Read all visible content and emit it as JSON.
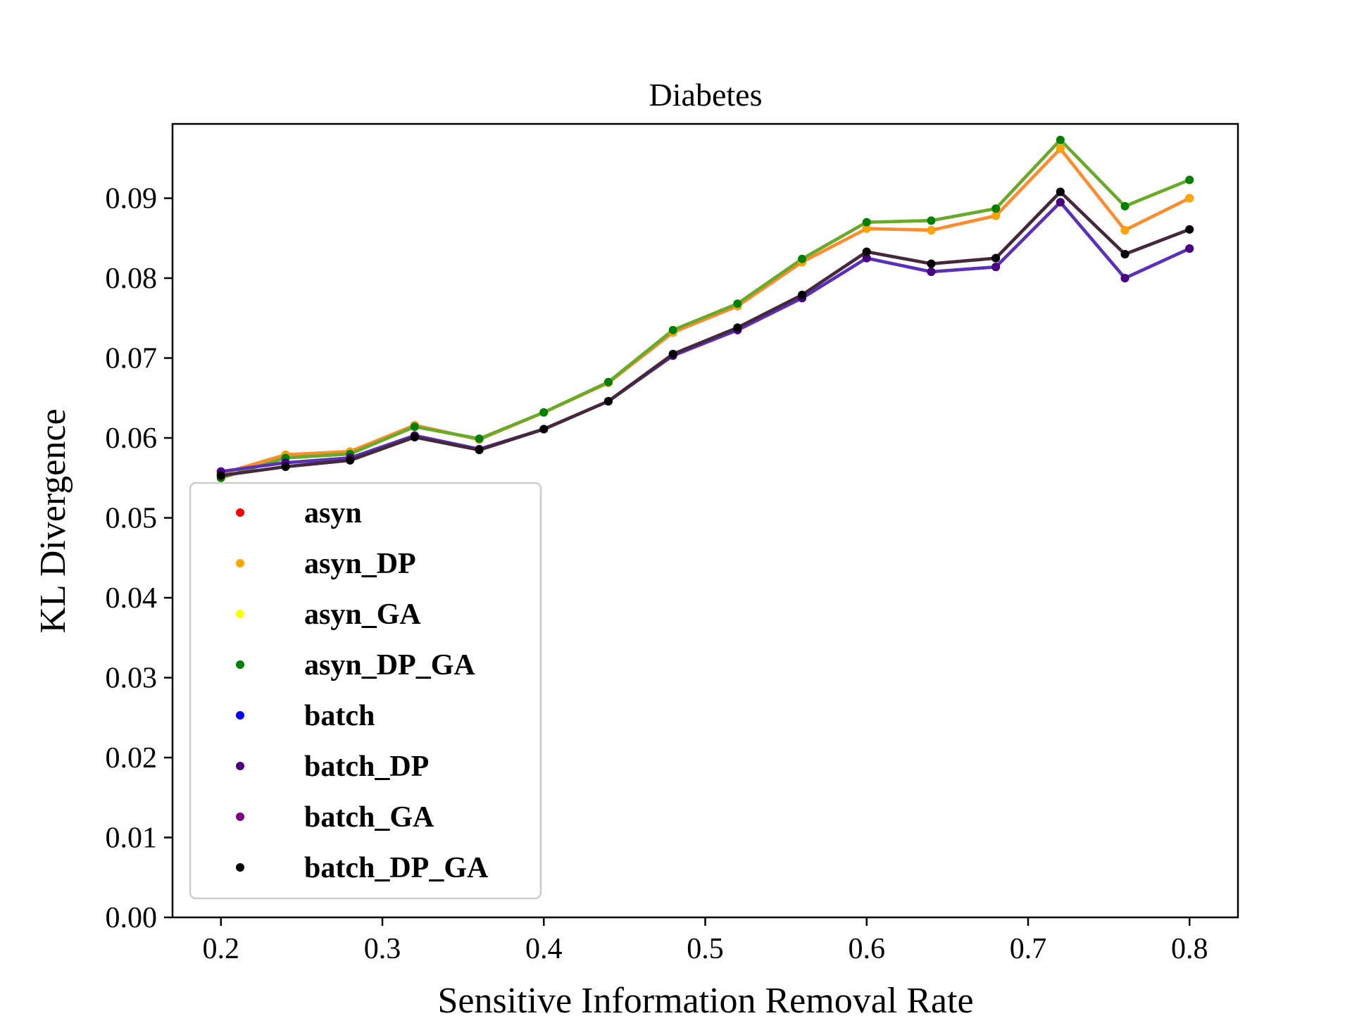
{
  "chart_data": {
    "type": "line",
    "title": "Diabetes",
    "xlabel": "Sensitive Information Removal Rate",
    "ylabel": "KL Divergence",
    "xlim": [
      0.17,
      0.83
    ],
    "ylim": [
      0.0,
      0.0993
    ],
    "xticks": [
      0.2,
      0.3,
      0.4,
      0.5,
      0.6,
      0.7,
      0.8
    ],
    "xtick_labels": [
      "0.2",
      "0.3",
      "0.4",
      "0.5",
      "0.6",
      "0.7",
      "0.8"
    ],
    "yticks": [
      0.0,
      0.01,
      0.02,
      0.03,
      0.04,
      0.05,
      0.06,
      0.07,
      0.08,
      0.09
    ],
    "ytick_labels": [
      "0.00",
      "0.01",
      "0.02",
      "0.03",
      "0.04",
      "0.05",
      "0.06",
      "0.07",
      "0.08",
      "0.09"
    ],
    "grid": false,
    "legend_position": "lower-left",
    "x": [
      0.2,
      0.24,
      0.28,
      0.32,
      0.36,
      0.4,
      0.44,
      0.48,
      0.52,
      0.56,
      0.6,
      0.64,
      0.68,
      0.72,
      0.76,
      0.8
    ],
    "series": [
      {
        "name": "asyn",
        "color": "#ff0000",
        "values": [
          0.0555,
          0.0579,
          0.0583,
          0.0616,
          0.0598,
          0.0632,
          0.0669,
          0.0732,
          0.0765,
          0.082,
          0.0862,
          0.086,
          0.0878,
          0.0962,
          0.086,
          0.09
        ]
      },
      {
        "name": "asyn_DP",
        "color": "#ffa500",
        "values": [
          0.0555,
          0.0579,
          0.0583,
          0.0616,
          0.0598,
          0.0632,
          0.0669,
          0.0732,
          0.0765,
          0.082,
          0.0862,
          0.086,
          0.0878,
          0.0962,
          0.086,
          0.09
        ]
      },
      {
        "name": "asyn_GA",
        "color": "#ffff00",
        "values": [
          0.055,
          0.0575,
          0.058,
          0.0614,
          0.0599,
          0.0632,
          0.067,
          0.0735,
          0.0768,
          0.0824,
          0.087,
          0.0872,
          0.0887,
          0.0973,
          0.089,
          0.0923
        ]
      },
      {
        "name": "asyn_DP_GA",
        "color": "#008000",
        "values": [
          0.055,
          0.0575,
          0.058,
          0.0614,
          0.0599,
          0.0632,
          0.067,
          0.0735,
          0.0768,
          0.0824,
          0.087,
          0.0872,
          0.0887,
          0.0973,
          0.089,
          0.0923
        ]
      },
      {
        "name": "batch",
        "color": "#0000ff",
        "values": [
          0.0558,
          0.0569,
          0.0575,
          0.0603,
          0.0586,
          0.0611,
          0.0646,
          0.0703,
          0.0735,
          0.0775,
          0.0825,
          0.0808,
          0.0814,
          0.0895,
          0.08,
          0.0837
        ]
      },
      {
        "name": "batch_DP",
        "color": "#4b0082",
        "values": [
          0.0558,
          0.0569,
          0.0575,
          0.0603,
          0.0586,
          0.0611,
          0.0646,
          0.0703,
          0.0735,
          0.0775,
          0.0825,
          0.0808,
          0.0814,
          0.0895,
          0.08,
          0.0837
        ]
      },
      {
        "name": "batch_GA",
        "color": "#800080",
        "values": [
          0.0553,
          0.0564,
          0.0572,
          0.0601,
          0.0585,
          0.0611,
          0.0646,
          0.0705,
          0.0738,
          0.0779,
          0.0833,
          0.0818,
          0.0825,
          0.0908,
          0.083,
          0.0861
        ]
      },
      {
        "name": "batch_DP_GA",
        "color": "#000000",
        "values": [
          0.0553,
          0.0564,
          0.0572,
          0.0601,
          0.0585,
          0.0611,
          0.0646,
          0.0705,
          0.0738,
          0.0779,
          0.0833,
          0.0818,
          0.0825,
          0.0908,
          0.083,
          0.0861
        ]
      }
    ],
    "line_colors": [
      "#ff8c2e",
      "#6aaa2a",
      "#5a30b8",
      "#45283c"
    ]
  }
}
